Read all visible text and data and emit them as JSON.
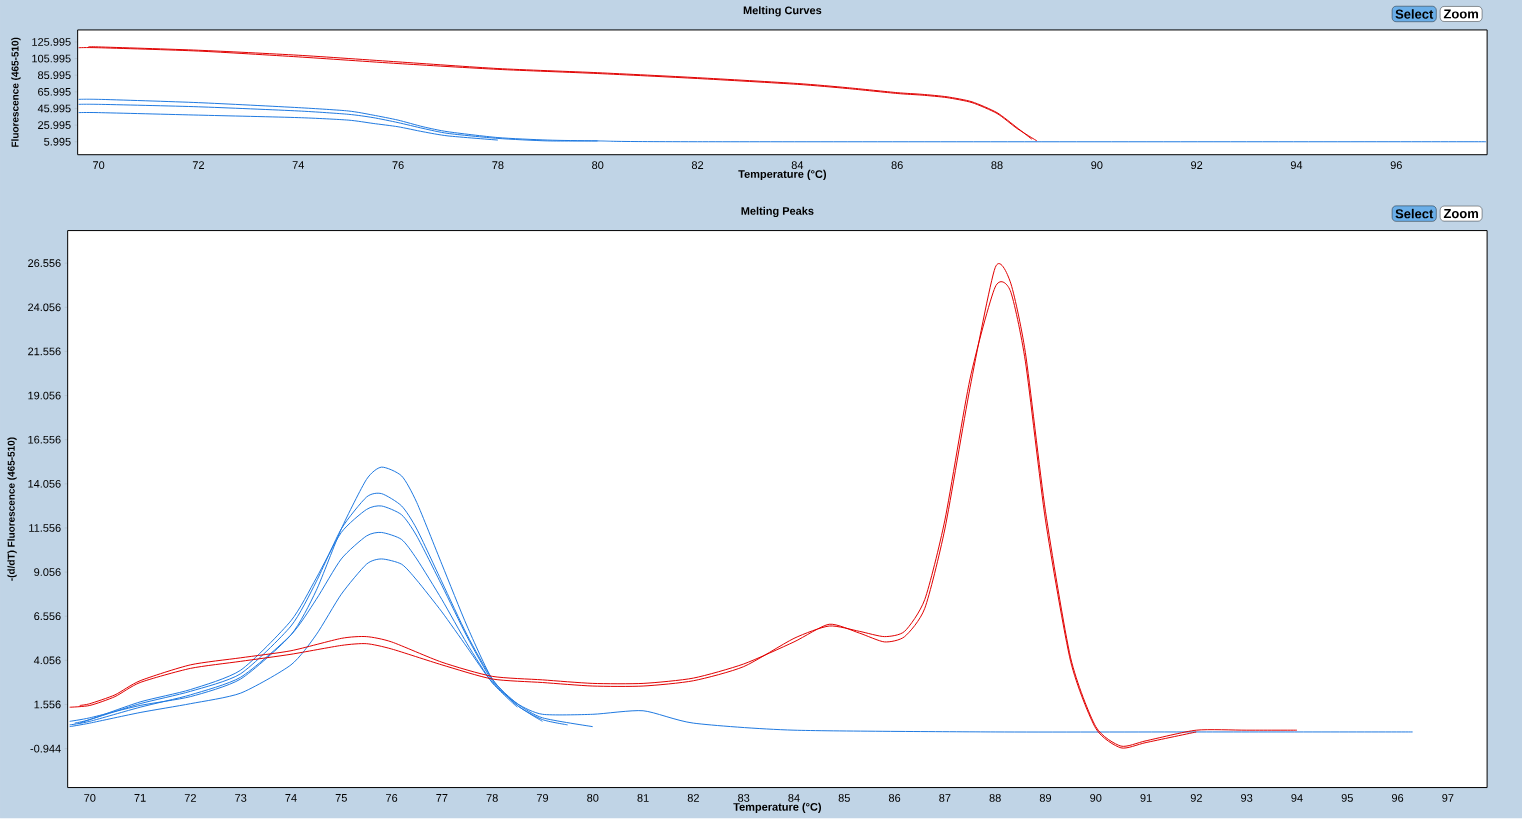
{
  "chart_data": [
    {
      "type": "line",
      "title": "Melting Curves",
      "xlabel": "Temperature (°C)",
      "ylabel": "Fluorescence (465-510)",
      "xlim": [
        69.58,
        97.82
      ],
      "ylim": [
        -9.6,
        140.4
      ],
      "xticks": [
        70,
        72,
        74,
        76,
        78,
        80,
        82,
        84,
        86,
        88,
        90,
        92,
        94,
        96
      ],
      "yticks": [
        5.995,
        25.995,
        45.995,
        65.995,
        85.995,
        105.995,
        125.995
      ],
      "annotations": [
        "Select",
        "Zoom"
      ],
      "series": [
        {
          "color": "#e00000",
          "x": [
            69.6,
            70,
            72,
            74,
            76,
            78,
            80,
            82,
            84,
            85,
            86,
            86.5,
            87,
            87.5,
            88,
            88.4,
            88.8
          ],
          "values": [
            119,
            119,
            115,
            108,
            100,
            93,
            88,
            82,
            75,
            70,
            64,
            62,
            59,
            53,
            40,
            22,
            7
          ]
        },
        {
          "color": "#e00000",
          "x": [
            69.8,
            70,
            72,
            74,
            76,
            78,
            80,
            82,
            84,
            85,
            86,
            86.5,
            87,
            87.5,
            88,
            88.4,
            88.7
          ],
          "values": [
            120,
            120,
            116,
            110,
            102,
            94,
            89,
            83,
            76,
            71,
            65,
            63,
            60,
            54,
            41,
            23,
            9
          ]
        },
        {
          "color": "#1e78e0",
          "x": [
            69.6,
            70,
            72,
            74,
            75,
            75.5,
            76,
            76.5,
            77,
            78,
            79,
            80,
            82,
            97.8
          ],
          "values": [
            57,
            57,
            53,
            47,
            43,
            38,
            32,
            24,
            18,
            11,
            8,
            7,
            6,
            6
          ]
        },
        {
          "color": "#1e78e0",
          "x": [
            69.6,
            70,
            72,
            74,
            75,
            75.5,
            76,
            76.5,
            77,
            78,
            79,
            80
          ],
          "values": [
            51,
            51,
            48,
            43,
            39,
            35,
            29,
            22,
            16,
            10,
            7,
            7
          ]
        },
        {
          "color": "#1e78e0",
          "x": [
            69.6,
            70,
            72,
            74,
            75,
            75.5,
            76,
            76.5,
            77,
            78
          ],
          "values": [
            41,
            41,
            38,
            35,
            32,
            28,
            24,
            18,
            13,
            8
          ]
        }
      ]
    },
    {
      "type": "line",
      "title": "Melting Peaks",
      "xlabel": "Temperature (°C)",
      "ylabel": "-(d/dT) Fluorescence (465-510)",
      "xlim": [
        69.56,
        97.78
      ],
      "ylim": [
        -3.15,
        28.4
      ],
      "xticks": [
        70,
        71,
        72,
        73,
        74,
        75,
        76,
        77,
        78,
        79,
        80,
        81,
        82,
        83,
        84,
        85,
        86,
        87,
        88,
        89,
        90,
        91,
        92,
        93,
        94,
        95,
        96,
        97
      ],
      "yticks": [
        -0.944,
        1.556,
        4.056,
        6.556,
        9.056,
        11.556,
        14.056,
        16.556,
        19.056,
        21.556,
        24.056,
        26.556
      ],
      "annotations": [
        "Select",
        "Zoom"
      ],
      "series": [
        {
          "color": "#1e78e0",
          "x": [
            69.6,
            70,
            71,
            72,
            73,
            74,
            74.5,
            75,
            75.5,
            75.8,
            76.2,
            76.5,
            77,
            77.5,
            78,
            78.5,
            79,
            80
          ],
          "values": [
            0.6,
            0.8,
            1.5,
            2.0,
            3.0,
            5.5,
            8,
            11.5,
            14.3,
            15.0,
            14.5,
            13,
            9.5,
            6,
            3,
            1.6,
            0.8,
            0.3
          ]
        },
        {
          "color": "#1e78e0",
          "x": [
            69.7,
            70,
            71,
            72,
            73,
            74,
            74.5,
            75,
            75.5,
            75.8,
            76.2,
            76.5,
            77,
            77.5,
            78,
            78.5,
            79,
            79.5
          ],
          "values": [
            0.5,
            0.7,
            1.6,
            2.3,
            3.3,
            6,
            8.5,
            11.5,
            13.3,
            13.5,
            12.8,
            11.5,
            8.5,
            5.5,
            3,
            1.5,
            0.7,
            0.4
          ]
        },
        {
          "color": "#1e78e0",
          "x": [
            69.8,
            70,
            71,
            72,
            73,
            74,
            74.5,
            75,
            75.5,
            75.8,
            76.2,
            76.5,
            77,
            77.5,
            78,
            78.5,
            79
          ],
          "values": [
            0.5,
            0.7,
            1.7,
            2.4,
            3.5,
            6.3,
            8.7,
            11.3,
            12.6,
            12.8,
            12.3,
            11.1,
            8.3,
            5.4,
            2.9,
            1.5,
            0.6
          ]
        },
        {
          "color": "#1e78e0",
          "x": [
            69.6,
            70,
            71,
            72,
            73,
            74,
            74.5,
            75,
            75.5,
            75.8,
            76.2,
            76.5,
            77,
            77.5,
            78,
            78.5
          ],
          "values": [
            0.4,
            0.6,
            1.4,
            2.1,
            3.1,
            5.5,
            7.5,
            9.8,
            11.1,
            11.3,
            10.9,
            9.8,
            7.5,
            5,
            2.8,
            1.4
          ]
        },
        {
          "color": "#1e78e0",
          "x": [
            69.6,
            70,
            71,
            72,
            73,
            74,
            74.5,
            75,
            75.5,
            75.8,
            76.2,
            76.5,
            77,
            77.5,
            78,
            78.5,
            79,
            80,
            81,
            82,
            84,
            88,
            92,
            96.3
          ],
          "values": [
            0.3,
            0.5,
            1.1,
            1.6,
            2.2,
            3.8,
            5.5,
            7.8,
            9.5,
            9.8,
            9.5,
            8.6,
            6.8,
            4.8,
            2.8,
            1.6,
            1.0,
            1.0,
            1.2,
            0.5,
            0.1,
            0,
            0,
            0
          ]
        },
        {
          "color": "#e00000",
          "x": [
            69.6,
            70,
            70.5,
            71,
            72,
            73,
            74,
            75,
            75.5,
            76,
            77,
            78,
            79,
            80,
            81,
            82,
            83,
            84,
            84.7,
            85.3,
            85.8,
            86.2,
            86.6,
            87,
            87.5,
            88,
            88.3,
            88.6,
            89,
            89.5,
            90,
            90.5,
            91,
            92
          ],
          "values": [
            1.4,
            1.5,
            2.0,
            2.8,
            3.6,
            4.0,
            4.4,
            4.9,
            5.0,
            4.7,
            3.8,
            3.0,
            2.8,
            2.6,
            2.6,
            2.9,
            3.7,
            5.3,
            6.0,
            5.7,
            5.4,
            5.7,
            7.5,
            12,
            20,
            25.2,
            25,
            21,
            12,
            4,
            0.2,
            -0.9,
            -0.6,
            0
          ]
        },
        {
          "color": "#e00000",
          "x": [
            69.8,
            70,
            70.5,
            71,
            72,
            73,
            74,
            75,
            75.5,
            76,
            77,
            78,
            79,
            80,
            81,
            82,
            83,
            84,
            84.7,
            85.3,
            85.8,
            86.2,
            86.6,
            87,
            87.5,
            88,
            88.3,
            88.6,
            89,
            89.5,
            90,
            90.5,
            91,
            92,
            93,
            94
          ],
          "values": [
            1.5,
            1.6,
            2.1,
            2.9,
            3.8,
            4.2,
            4.6,
            5.3,
            5.4,
            5.1,
            3.95,
            3.15,
            2.95,
            2.75,
            2.75,
            3.05,
            3.85,
            5.1,
            6.1,
            5.6,
            5.1,
            5.4,
            7.0,
            11.5,
            19.5,
            26.3,
            25.5,
            21.5,
            12.5,
            4.2,
            0.3,
            -0.8,
            -0.5,
            0.1,
            0.1,
            0.1
          ]
        }
      ]
    }
  ]
}
